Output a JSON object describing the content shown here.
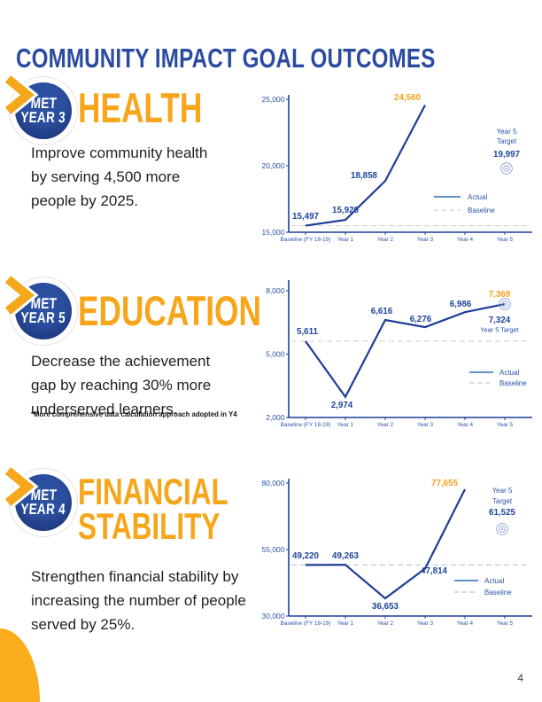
{
  "page": {
    "title": "COMMUNITY IMPACT GOAL OUTCOMES",
    "page_number": "4"
  },
  "colors": {
    "title_blue": "#2B4BA0",
    "navy_line": "#1E3E96",
    "label_blue": "#1E449C",
    "axis_text": "#2953A8",
    "orange": "#F5A01E",
    "yellow": "#F7A61B",
    "legend_blue": "#2E6CB5",
    "bullseye_blue": "#8FA8D8"
  },
  "sections": [
    {
      "id": "health",
      "badge": {
        "line1": "MET",
        "line2": "YEAR 3"
      },
      "title_lines": [
        "HEALTH"
      ],
      "description_lines": [
        "Improve community health",
        "by serving 4,500 more",
        "people by 2025."
      ],
      "chart_data": {
        "type": "line",
        "categories": [
          "Baseline (FY 18-19)",
          "Year 1",
          "Year 2",
          "Year 3",
          "Year 4",
          "Year 5"
        ],
        "series": [
          {
            "name": "Actual",
            "values": [
              15497,
              15929,
              18858,
              24560,
              null,
              null
            ]
          },
          {
            "name": "Baseline",
            "constant_value": 15497
          }
        ],
        "point_labels": [
          "15,497",
          "15,929",
          "18,858",
          "24,560"
        ],
        "highlight_last_label": true,
        "ylim": [
          15000,
          25000
        ],
        "yticks": [
          {
            "value": 15000,
            "label": "15,000"
          },
          {
            "value": 20000,
            "label": "20,000"
          },
          {
            "value": 25000,
            "label": "25,000"
          }
        ],
        "legend": [
          "Actual",
          "Baseline"
        ],
        "legend_position": "center-right",
        "baseline_line_color": "#D6D6D6",
        "target": {
          "line1": "Year 5",
          "line2": "Target",
          "value": "19,997"
        }
      }
    },
    {
      "id": "education",
      "badge": {
        "line1": "MET",
        "line2": "YEAR 5"
      },
      "title_lines": [
        "EDUCATION"
      ],
      "description_lines": [
        "Decrease the achievement",
        "gap by reaching 30% more",
        "underserved learners."
      ],
      "footnote": "*More comprehensive data calculation approach adopted in Y4",
      "chart_data": {
        "type": "line",
        "categories": [
          "Baseline (FY 18-19)",
          "Year 1",
          "Year 2",
          "Year 3",
          "Year 4",
          "Year 5"
        ],
        "series": [
          {
            "name": "Actual",
            "values": [
              5611,
              2974,
              6616,
              6276,
              6986,
              7369
            ]
          },
          {
            "name": "Baseline",
            "constant_value": 5611
          }
        ],
        "point_labels": [
          "5,611",
          "2,974",
          "6,616",
          "6,276",
          "6,986",
          "7,369"
        ],
        "highlight_last_label": true,
        "ylim": [
          2000,
          8000
        ],
        "yticks": [
          {
            "value": 2000,
            "label": "2,000"
          },
          {
            "value": 5000,
            "label": "5,000"
          },
          {
            "value": 8000,
            "label": "8,000"
          }
        ],
        "legend": [
          "Actual",
          "Baseline"
        ],
        "legend_position": "bottom-right",
        "baseline_line_color": "#CFCFCF",
        "target": {
          "value": "7,324",
          "label": "Year 5 Target"
        }
      }
    },
    {
      "id": "financial-stability",
      "badge": {
        "line1": "MET",
        "line2": "YEAR 4"
      },
      "title_lines": [
        "FINANCIAL",
        "STABILITY"
      ],
      "description_lines": [
        "Strengthen financial stability by",
        "increasing the number of people",
        "served by 25%."
      ],
      "chart_data": {
        "type": "line",
        "categories": [
          "Baseline (FY 18-19)",
          "Year 1",
          "Year 2",
          "Year 3",
          "Year 4",
          "Year 5"
        ],
        "series": [
          {
            "name": "Actual",
            "values": [
              49220,
              49263,
              36653,
              47814,
              77655,
              null
            ]
          },
          {
            "name": "Baseline",
            "constant_value": 49220
          }
        ],
        "point_labels": [
          "49,220",
          "49,263",
          "36,653",
          "47,814",
          "77,655"
        ],
        "highlight_last_label": true,
        "ylim": [
          30000,
          80000
        ],
        "yticks": [
          {
            "value": 30000,
            "label": "30,000"
          },
          {
            "value": 55000,
            "label": "55,000"
          },
          {
            "value": 80000,
            "label": "80,000"
          }
        ],
        "legend": [
          "Actual",
          "Baseline"
        ],
        "legend_position": "bottom-right",
        "baseline_line_color": "#BCCBE4",
        "target": {
          "line1": "Year 5",
          "line2": "Target",
          "value": "61,525"
        }
      }
    }
  ]
}
